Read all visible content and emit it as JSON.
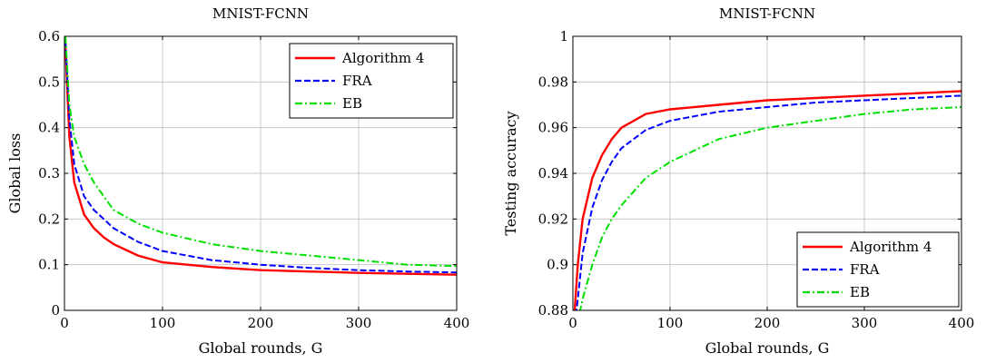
{
  "chart_data": [
    {
      "type": "line",
      "title": "MNIST-FCNN",
      "xlabel": "Global rounds, G",
      "ylabel": "Global loss",
      "xlim": [
        0,
        400
      ],
      "ylim": [
        0,
        0.6
      ],
      "xticks": [
        "0",
        "100",
        "200",
        "300",
        "400"
      ],
      "yticks": [
        "0",
        "0.1",
        "0.2",
        "0.3",
        "0.4",
        "0.5",
        "0.6"
      ],
      "grid": true,
      "legend_position": "top-right",
      "series": [
        {
          "name": "Algorithm 4",
          "color": "#ff0000",
          "style": "solid",
          "x": [
            1,
            5,
            10,
            20,
            30,
            40,
            50,
            75,
            100,
            150,
            200,
            250,
            300,
            350,
            400
          ],
          "y": [
            0.58,
            0.38,
            0.28,
            0.21,
            0.18,
            0.16,
            0.145,
            0.12,
            0.105,
            0.095,
            0.088,
            0.085,
            0.082,
            0.08,
            0.078
          ]
        },
        {
          "name": "FRA",
          "color": "#0000ff",
          "style": "dashed",
          "x": [
            1,
            5,
            10,
            20,
            30,
            40,
            50,
            75,
            100,
            150,
            200,
            250,
            300,
            350,
            400
          ],
          "y": [
            0.59,
            0.42,
            0.32,
            0.25,
            0.22,
            0.2,
            0.18,
            0.15,
            0.13,
            0.11,
            0.1,
            0.093,
            0.088,
            0.085,
            0.083
          ]
        },
        {
          "name": "EB",
          "color": "#00e000",
          "style": "dashdot",
          "x": [
            1,
            5,
            10,
            20,
            30,
            40,
            50,
            75,
            100,
            150,
            200,
            250,
            300,
            350,
            400
          ],
          "y": [
            0.6,
            0.45,
            0.38,
            0.32,
            0.28,
            0.25,
            0.22,
            0.19,
            0.17,
            0.145,
            0.13,
            0.12,
            0.11,
            0.1,
            0.097
          ]
        }
      ]
    },
    {
      "type": "line",
      "title": "MNIST-FCNN",
      "xlabel": "Global rounds, G",
      "ylabel": "Testing accuracy",
      "xlim": [
        0,
        400
      ],
      "ylim": [
        0.88,
        1
      ],
      "xticks": [
        "0",
        "100",
        "200",
        "300",
        "400"
      ],
      "yticks": [
        "0.88",
        "0.9",
        "0.92",
        "0.94",
        "0.96",
        "0.98",
        "1"
      ],
      "grid": true,
      "legend_position": "bottom-right",
      "series": [
        {
          "name": "Algorithm 4",
          "color": "#ff0000",
          "style": "solid",
          "x": [
            1,
            5,
            10,
            20,
            30,
            40,
            50,
            75,
            100,
            150,
            200,
            250,
            300,
            350,
            400
          ],
          "y": [
            0.875,
            0.9,
            0.92,
            0.938,
            0.948,
            0.955,
            0.96,
            0.966,
            0.968,
            0.97,
            0.972,
            0.973,
            0.974,
            0.975,
            0.976
          ]
        },
        {
          "name": "FRA",
          "color": "#0000ff",
          "style": "dashed",
          "x": [
            1,
            5,
            10,
            20,
            30,
            40,
            50,
            75,
            100,
            150,
            200,
            250,
            300,
            350,
            400
          ],
          "y": [
            0.87,
            0.885,
            0.905,
            0.925,
            0.937,
            0.945,
            0.951,
            0.959,
            0.963,
            0.967,
            0.969,
            0.971,
            0.972,
            0.973,
            0.974
          ]
        },
        {
          "name": "EB",
          "color": "#00e000",
          "style": "dashdot",
          "x": [
            1,
            5,
            10,
            20,
            30,
            40,
            50,
            75,
            100,
            150,
            200,
            250,
            300,
            350,
            400
          ],
          "y": [
            0.86,
            0.875,
            0.885,
            0.9,
            0.912,
            0.92,
            0.926,
            0.938,
            0.945,
            0.955,
            0.96,
            0.963,
            0.966,
            0.968,
            0.969
          ]
        }
      ]
    }
  ]
}
